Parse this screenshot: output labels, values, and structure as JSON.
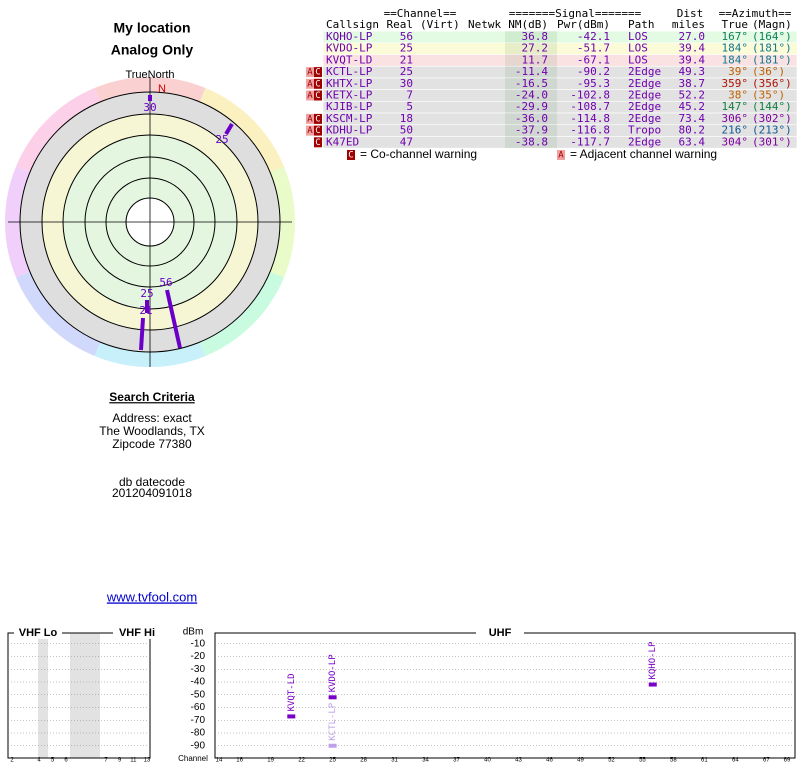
{
  "header": {
    "title": "My location",
    "subtitle": "Analog Only"
  },
  "polar": {
    "north_label": "TrueNorth",
    "n": "N",
    "markers": [
      "30",
      "25",
      "56",
      "25",
      "21"
    ]
  },
  "table": {
    "group_headers": [
      "==Channel==",
      "=======Signal=======",
      "Dist",
      "==Azimuth=="
    ],
    "headers": [
      "Callsign",
      "Real",
      "(Virt)",
      "Netwk",
      "NM(dB)",
      "Pwr(dBm)",
      "Path",
      "miles",
      "True",
      "(Magn)"
    ],
    "rows": [
      {
        "callsign": "KQHO-LP",
        "real": "56",
        "nm": "36.8",
        "pwr": "-42.1",
        "path": "LOS",
        "dist": "27.0",
        "az_true": "167°",
        "az_magn": "(164°)",
        "row_color": "#e2fbe2",
        "az_color": "#108060"
      },
      {
        "callsign": "KVDO-LP",
        "real": "25",
        "nm": "27.2",
        "pwr": "-51.7",
        "path": "LOS",
        "dist": "39.4",
        "az_true": "184°",
        "az_magn": "(181°)",
        "row_color": "#fbfbd8",
        "az_color": "#107890"
      },
      {
        "callsign": "KVQT-LD",
        "real": "21",
        "nm": "11.7",
        "pwr": "-67.1",
        "path": "LOS",
        "dist": "39.4",
        "az_true": "184°",
        "az_magn": "(181°)",
        "row_color": "#fbe2e2",
        "az_color": "#107890"
      },
      {
        "flags": [
          "A",
          "C"
        ],
        "callsign": "KCTL-LP",
        "real": "25",
        "nm": "-11.4",
        "pwr": "-90.2",
        "path": "2Edge",
        "dist": "49.3",
        "az_true": "39°",
        "az_magn": "(36°)",
        "row_color": "#e2e2e2",
        "az_color": "#c06000"
      },
      {
        "flags": [
          "A",
          "C"
        ],
        "callsign": "KHTX-LP",
        "real": "30",
        "nm": "-16.5",
        "pwr": "-95.3",
        "path": "2Edge",
        "dist": "38.7",
        "az_true": "359°",
        "az_magn": "(356°)",
        "row_color": "#e2e2e2",
        "az_color": "#b01000"
      },
      {
        "flags": [
          "A",
          "C"
        ],
        "callsign": "KETX-LP",
        "real": "7",
        "nm": "-24.0",
        "pwr": "-102.8",
        "path": "2Edge",
        "dist": "52.2",
        "az_true": "38°",
        "az_magn": "(35°)",
        "row_color": "#e2e2e2",
        "az_color": "#c06000"
      },
      {
        "callsign": "KJIB-LP",
        "real": "5",
        "nm": "-29.9",
        "pwr": "-108.7",
        "path": "2Edge",
        "dist": "45.2",
        "az_true": "147°",
        "az_magn": "(144°)",
        "row_color": "#e2e2e2",
        "az_color": "#108040"
      },
      {
        "flags": [
          "A",
          "C"
        ],
        "callsign": "KSCM-LP",
        "real": "18",
        "nm": "-36.0",
        "pwr": "-114.8",
        "path": "2Edge",
        "dist": "73.4",
        "az_true": "306°",
        "az_magn": "(302°)",
        "row_color": "#e2e2e2",
        "az_color": "#8000a0"
      },
      {
        "flags": [
          "A",
          "C"
        ],
        "callsign": "KDHU-LP",
        "real": "50",
        "nm": "-37.9",
        "pwr": "-116.8",
        "path": "Tropo",
        "dist": "80.2",
        "az_true": "216°",
        "az_magn": "(213°)",
        "row_color": "#e2e2e2",
        "az_color": "#105890"
      },
      {
        "flags": [
          "C"
        ],
        "callsign": "K47ED",
        "real": "47",
        "nm": "-38.8",
        "pwr": "-117.7",
        "path": "2Edge",
        "dist": "63.4",
        "az_true": "304°",
        "az_magn": "(301°)",
        "row_color": "#e2e2e2",
        "az_color": "#8000a0"
      }
    ],
    "legend": [
      {
        "icon": "C",
        "text": "= Co-channel warning"
      },
      {
        "icon": "A",
        "text": "= Adjacent channel warning"
      }
    ]
  },
  "search": {
    "heading": "Search Criteria",
    "lines": [
      "Address: exact",
      "The Woodlands, TX",
      "Zipcode 77380"
    ],
    "db_label": "db datecode",
    "db_value": "201204091018",
    "link": "www.tvfool.com"
  },
  "spectrum": {
    "sections": [
      "VHF Lo",
      "VHF Hi",
      "UHF"
    ],
    "y_label": "dBm",
    "x_label": "Channel",
    "ylim": [
      -100,
      0
    ],
    "yticks": [
      -10,
      -20,
      -30,
      -40,
      -50,
      -60,
      -70,
      -80,
      -90
    ],
    "vhf_ticks": [
      2,
      4,
      5,
      6,
      7,
      9,
      11,
      13
    ],
    "uhf_ticks": [
      14,
      16,
      19,
      22,
      25,
      28,
      31,
      34,
      37,
      40,
      43,
      46,
      49,
      52,
      55,
      58,
      61,
      64,
      67,
      69
    ],
    "stations": [
      {
        "label": "KVQT-LD",
        "channel": 21,
        "dbm": -67,
        "color": "#7a00c8"
      },
      {
        "label": "KVDO-LP",
        "channel": 25,
        "dbm": -52,
        "color": "#7a00c8"
      },
      {
        "label": "KCTL-LP",
        "channel": 25,
        "dbm": -90,
        "color": "#c0a0e8"
      },
      {
        "label": "KQHO-LP",
        "channel": 56,
        "dbm": -42,
        "color": "#7a00c8"
      }
    ]
  }
}
